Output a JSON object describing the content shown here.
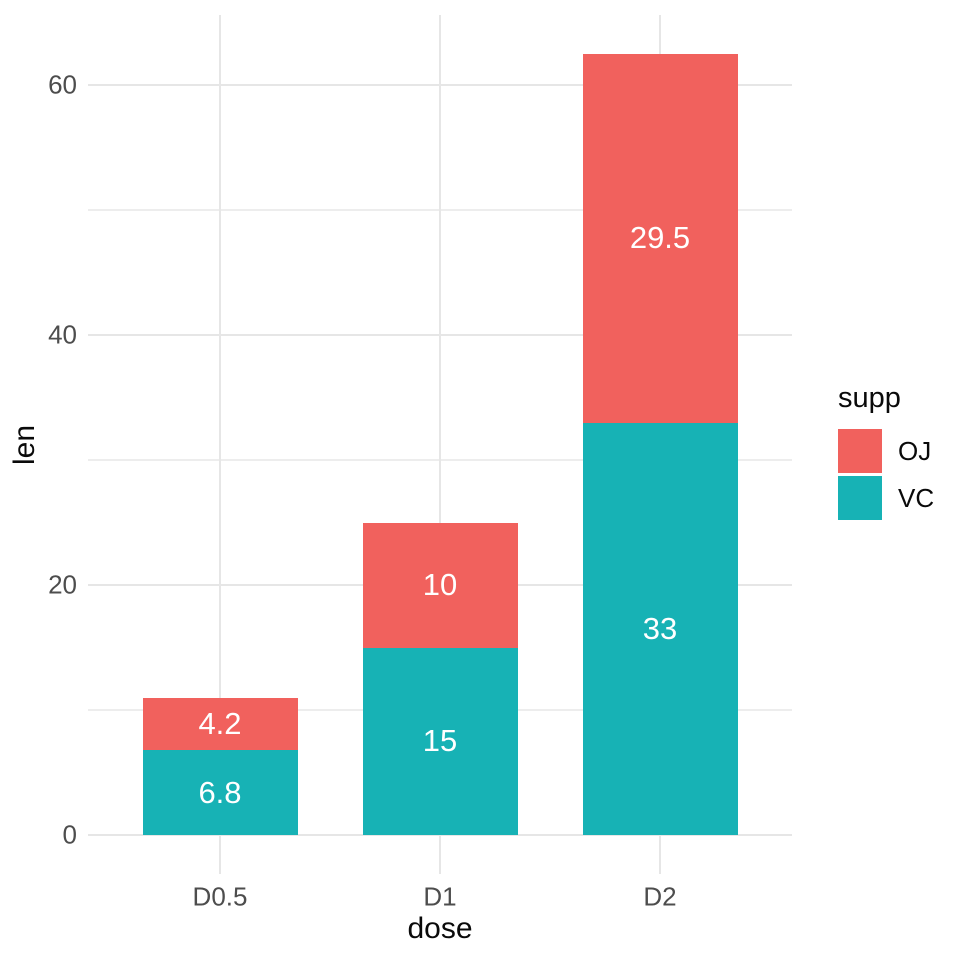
{
  "chart_data": {
    "type": "bar",
    "stacked": true,
    "orientation": "vertical",
    "title": "",
    "xlabel": "dose",
    "ylabel": "len",
    "categories": [
      "D0.5",
      "D1",
      "D2"
    ],
    "series": [
      {
        "name": "VC",
        "color": "#17b2b5",
        "values": [
          6.8,
          15,
          33
        ],
        "labels": [
          "6.8",
          "15",
          "33"
        ]
      },
      {
        "name": "OJ",
        "color": "#f1615d",
        "values": [
          4.2,
          10,
          29.5
        ],
        "labels": [
          "4.2",
          "10",
          "29.5"
        ]
      }
    ],
    "stack_order_bottom_to_top": [
      "VC",
      "OJ"
    ],
    "totals": [
      11,
      25,
      62.5
    ],
    "bar_label_color": "#ffffff",
    "y_major_ticks": [
      0,
      20,
      40,
      60
    ],
    "y_tick_labels": [
      "0",
      "20",
      "40",
      "60"
    ],
    "y_minor_gridlines": [
      10,
      30,
      50
    ],
    "ylim": [
      -3.125,
      65.625
    ],
    "grid": "on",
    "legend_position": "right",
    "theme": "minimal-white"
  },
  "legend": {
    "title": "supp",
    "entries": [
      {
        "label": "OJ",
        "color": "#f1615d"
      },
      {
        "label": "VC",
        "color": "#17b2b5"
      }
    ]
  },
  "colors": {
    "background": "#ffffff",
    "grid_major": "#e6e6e6",
    "grid_minor": "#ededed",
    "tick_label": "#4d4d4d",
    "axis_title": "#0a0a0a"
  }
}
